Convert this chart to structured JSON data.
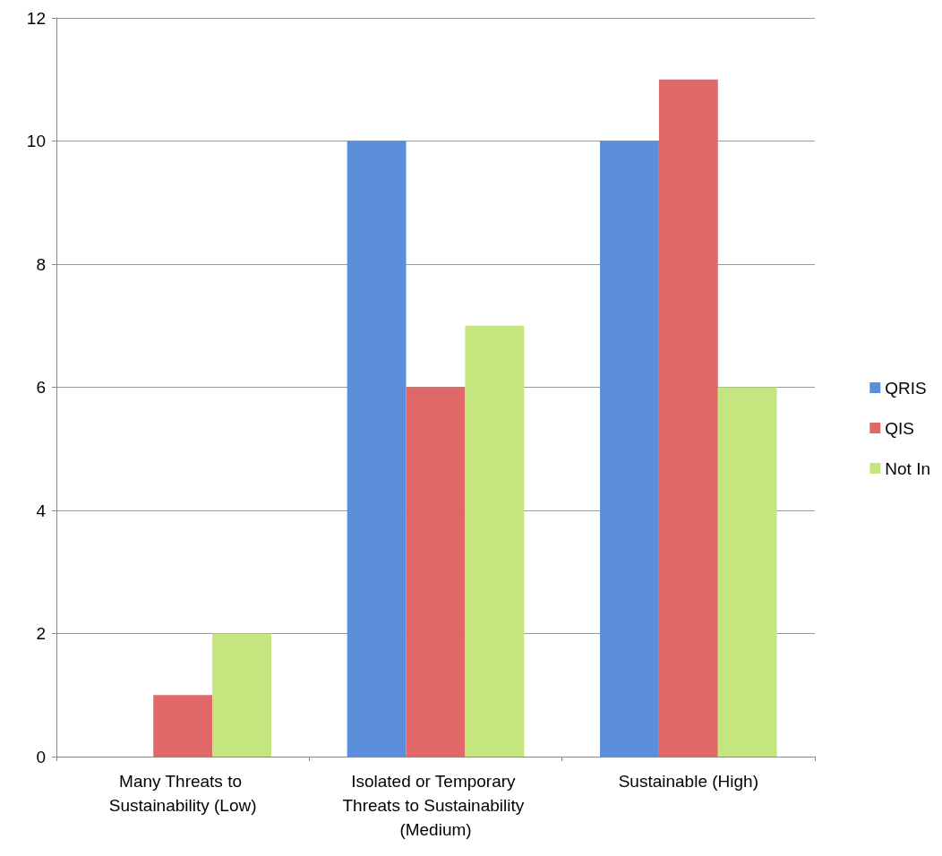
{
  "chart_data": {
    "type": "bar",
    "categories": [
      "Many Threats to Sustainability (Low)",
      "Isolated or Temporary Threats to Sustainability (Medium)",
      "Sustainable (High)"
    ],
    "series": [
      {
        "name": "QRIS",
        "color": "#5b8fdc",
        "values": [
          0,
          10,
          10
        ]
      },
      {
        "name": "QIS",
        "color": "#e06868",
        "values": [
          1,
          6,
          11
        ]
      },
      {
        "name": "Not In",
        "color": "#c5e67f",
        "values": [
          2,
          7,
          6
        ]
      }
    ],
    "ylim": [
      0,
      12
    ],
    "yticks": [
      0,
      2,
      4,
      6,
      8,
      10,
      12
    ],
    "grid": "y",
    "legend": "right"
  }
}
